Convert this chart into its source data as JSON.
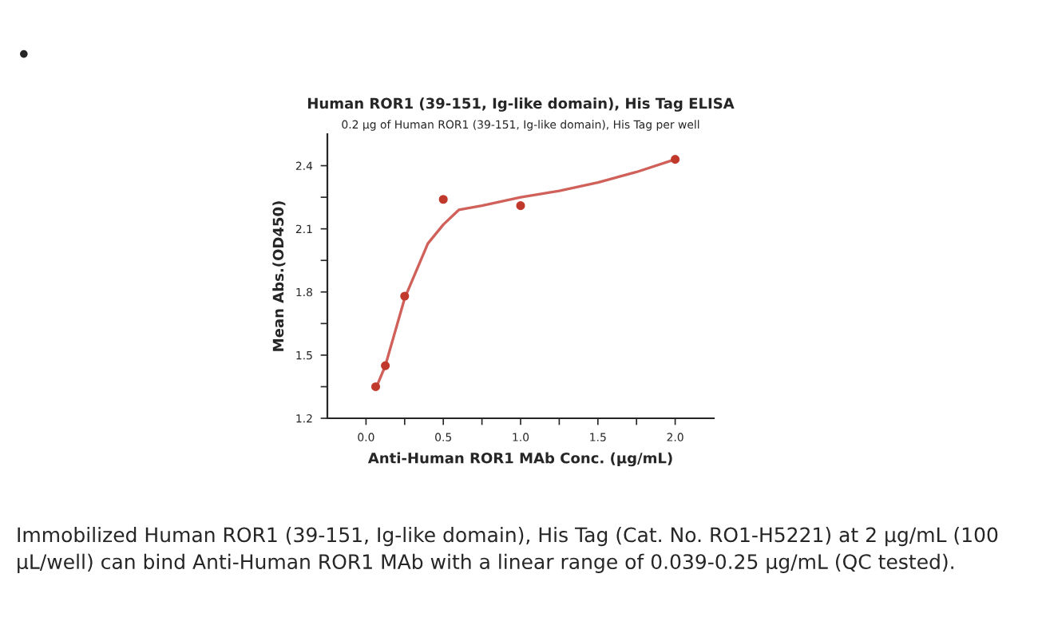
{
  "chart_data": {
    "type": "scatter",
    "title": "Human ROR1 (39-151, Ig-like domain), His Tag ELISA",
    "subtitle": "0.2 μg of Human ROR1 (39-151, Ig-like domain), His Tag per well",
    "xlabel": "Anti-Human ROR1 MAb Conc. (μg/mL)",
    "ylabel": "Mean Abs.(OD450)",
    "x": [
      0.0625,
      0.125,
      0.25,
      0.5,
      1.0,
      2.0
    ],
    "series": [
      {
        "color": "#c0392b",
        "marker": "circle",
        "values": [
          1.35,
          1.45,
          1.78,
          2.24,
          2.21,
          2.43
        ]
      },
      {
        "type": "line",
        "marker": "none",
        "color": "#d0605a",
        "x": [
          0.0625,
          0.125,
          0.25,
          0.4,
          0.5,
          0.6,
          0.75,
          1.0,
          1.25,
          1.5,
          1.75,
          2.0
        ],
        "values": [
          1.34,
          1.45,
          1.77,
          2.03,
          2.12,
          2.19,
          2.21,
          2.25,
          2.28,
          2.32,
          2.37,
          2.43
        ]
      }
    ],
    "xlim": [
      -0.25,
      2.25
    ],
    "ylim": [
      1.2,
      2.55
    ],
    "xticks": [
      {
        "value": 0,
        "label": "0.0"
      },
      {
        "value": 0.25,
        "label": null
      },
      {
        "value": 0.5,
        "label": "0.5"
      },
      {
        "value": 0.75,
        "label": null
      },
      {
        "value": 1,
        "label": "1.0"
      },
      {
        "value": 1.25,
        "label": null
      },
      {
        "value": 1.5,
        "label": "1.5"
      },
      {
        "value": 1.75,
        "label": null
      },
      {
        "value": 2,
        "label": "2.0"
      }
    ],
    "yticks": [
      1.2,
      {
        "value": 1.35,
        "label": null
      },
      1.5,
      {
        "value": 1.65,
        "label": null
      },
      1.8,
      {
        "value": 1.95,
        "label": null
      },
      2.1,
      {
        "value": 2.25,
        "label": null
      },
      2.4
    ],
    "annotations": [
      "•",
      "Immobilized Human ROR1 (39-151, Ig-like domain), His Tag (Cat. No. RO1-H5221) at 2 μg/mL (100 μL/well) can bind Anti-Human ROR1 MAb with a linear range of 0.039-0.25 μg/mL (QC tested)."
    ]
  }
}
